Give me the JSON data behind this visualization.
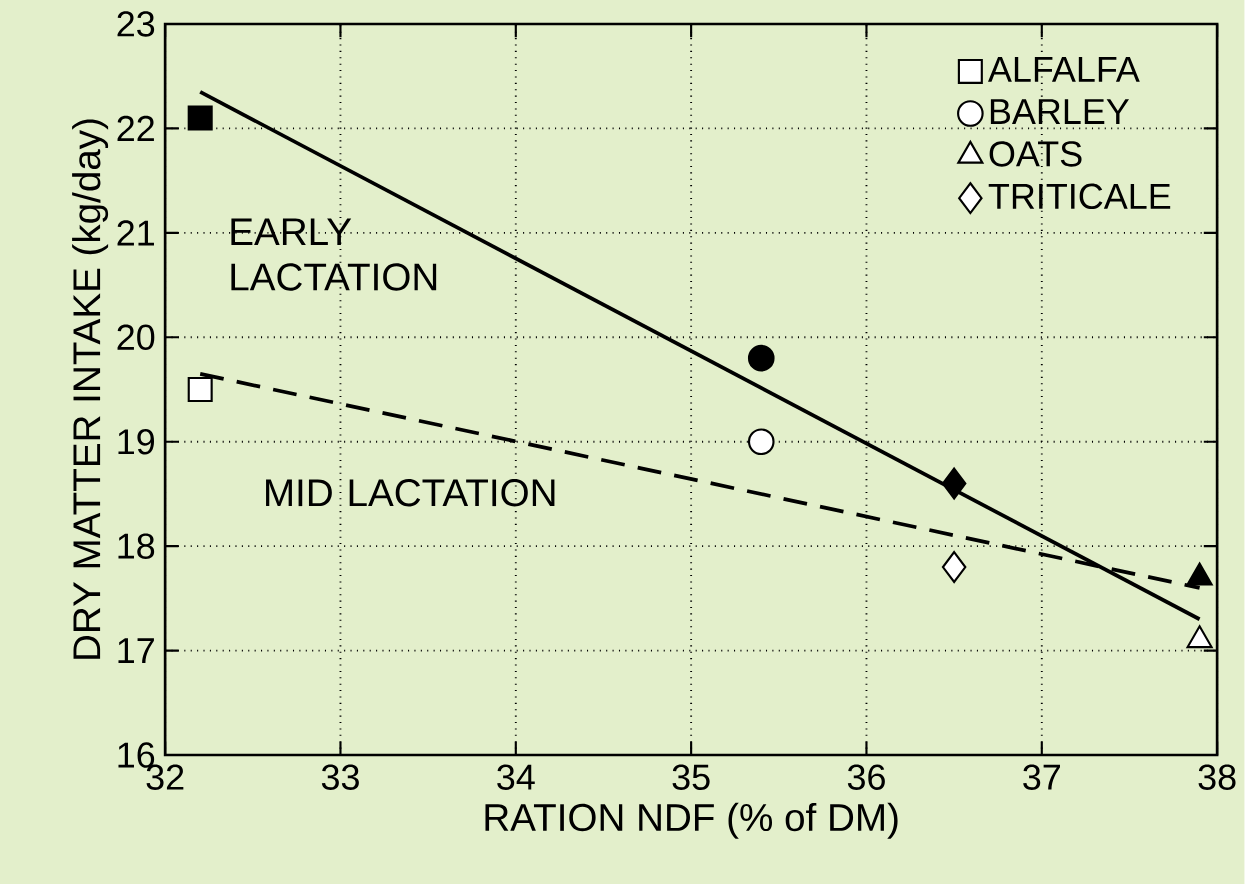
{
  "chart_data": {
    "type": "scatter",
    "xlabel": "RATION NDF (% of DM)",
    "ylabel": "DRY MATTER INTAKE (kg/day)",
    "xlim": [
      32,
      38
    ],
    "ylim": [
      16,
      23
    ],
    "xticks": [
      32,
      33,
      34,
      35,
      36,
      37,
      38
    ],
    "yticks": [
      16,
      17,
      18,
      19,
      20,
      21,
      22,
      23
    ],
    "grid": true,
    "legend": "top right",
    "series": [
      {
        "name": "EARLY LACTATION",
        "type": "line",
        "color": "#000000",
        "line_style": "solid",
        "marker": "none",
        "x": [
          32.2,
          37.9
        ],
        "values": [
          22.35,
          17.3
        ]
      },
      {
        "name": "MID LACTATION",
        "type": "line",
        "color": "#000000",
        "line_style": "dashed",
        "marker": "none",
        "x": [
          32.2,
          37.9
        ],
        "values": [
          19.65,
          17.6
        ]
      },
      {
        "name": "ALFALFA",
        "marker": "square",
        "color": "#000000",
        "colors": [
          "#000000",
          "#ffffff"
        ],
        "x": [
          32.2,
          32.2
        ],
        "values": [
          22.1,
          19.5
        ]
      },
      {
        "name": "BARLEY",
        "marker": "circle",
        "color": "#000000",
        "colors": [
          "#000000",
          "#ffffff"
        ],
        "x": [
          35.4,
          35.4
        ],
        "values": [
          19.8,
          19.0
        ]
      },
      {
        "name": "OATS",
        "marker": "triangle",
        "color": "#000000",
        "colors": [
          "#000000",
          "#ffffff"
        ],
        "x": [
          37.9,
          37.9
        ],
        "values": [
          17.7,
          17.1
        ]
      },
      {
        "name": "TRITICALE",
        "marker": "diamond",
        "color": "#000000",
        "colors": [
          "#000000",
          "#ffffff"
        ],
        "x": [
          36.5,
          36.5
        ],
        "values": [
          18.6,
          17.8
        ]
      }
    ]
  }
}
